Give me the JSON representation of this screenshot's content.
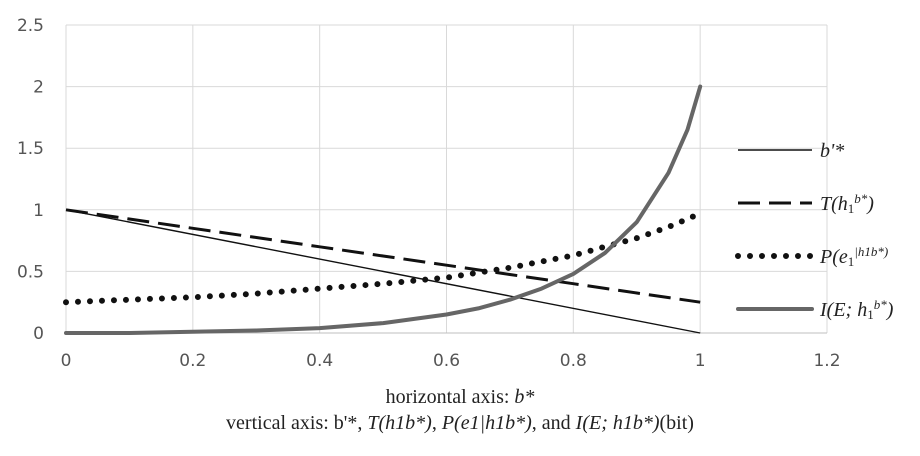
{
  "chart_data": {
    "type": "line",
    "xlabel_prefix": "horizontal axis: ",
    "xlabel_var": "b*",
    "ylabel_prefix": "vertical axis: ",
    "ylabel_parts": [
      "b'*, ",
      "T(h1b*)",
      ", ",
      "P(e1|h1b*)",
      ", and ",
      "I(E; h1b*)",
      "(bit)"
    ],
    "xlim": [
      0,
      1.2
    ],
    "ylim": [
      0,
      2.5
    ],
    "xticks": [
      "0",
      "0.2",
      "0.4",
      "0.6",
      "0.8",
      "1",
      "1.2"
    ],
    "yticks": [
      "0",
      "0.5",
      "1",
      "1.5",
      "2",
      "2.5"
    ],
    "grid": true,
    "legend_position": "right",
    "series": [
      {
        "name": "b'*",
        "style": "solid-thin",
        "color": "#111111",
        "x": [
          0,
          1
        ],
        "y": [
          1,
          0
        ]
      },
      {
        "name": "T(h1b*)",
        "style": "dashed",
        "color": "#111111",
        "x": [
          0,
          0.1,
          0.2,
          0.3,
          0.4,
          0.5,
          0.6,
          0.7,
          0.8,
          0.9,
          1.0
        ],
        "y": [
          1.0,
          0.925,
          0.85,
          0.775,
          0.7,
          0.625,
          0.55,
          0.475,
          0.4,
          0.325,
          0.25
        ]
      },
      {
        "name": "P(e1|h1b*)",
        "style": "dotted",
        "color": "#111111",
        "x": [
          0,
          0.1,
          0.2,
          0.3,
          0.4,
          0.5,
          0.6,
          0.7,
          0.8,
          0.9,
          0.95,
          1.0
        ],
        "y": [
          0.25,
          0.27,
          0.29,
          0.32,
          0.36,
          0.4,
          0.45,
          0.53,
          0.63,
          0.77,
          0.86,
          0.97
        ]
      },
      {
        "name": "I(E; h1b*)",
        "style": "solid-thick",
        "color": "#666666",
        "x": [
          0,
          0.1,
          0.2,
          0.3,
          0.4,
          0.5,
          0.6,
          0.65,
          0.7,
          0.75,
          0.8,
          0.85,
          0.9,
          0.95,
          0.98,
          1.0
        ],
        "y": [
          0,
          0.0,
          0.01,
          0.02,
          0.04,
          0.08,
          0.15,
          0.2,
          0.27,
          0.36,
          0.48,
          0.65,
          0.9,
          1.3,
          1.65,
          2.0
        ]
      }
    ],
    "legend": [
      {
        "label_main": "b'*",
        "label_sub": "",
        "label_sup": "",
        "label_tail": ""
      },
      {
        "label_main": "T(h",
        "label_sub": "1",
        "label_sup": "b*",
        "label_tail": ")"
      },
      {
        "label_main": "P(e",
        "label_sub": "1",
        "label_sup": "|h1b*)",
        "label_tail": ""
      },
      {
        "label_main": "I(E; h",
        "label_sub": "1",
        "label_sup": "b*",
        "label_tail": ")"
      }
    ]
  }
}
